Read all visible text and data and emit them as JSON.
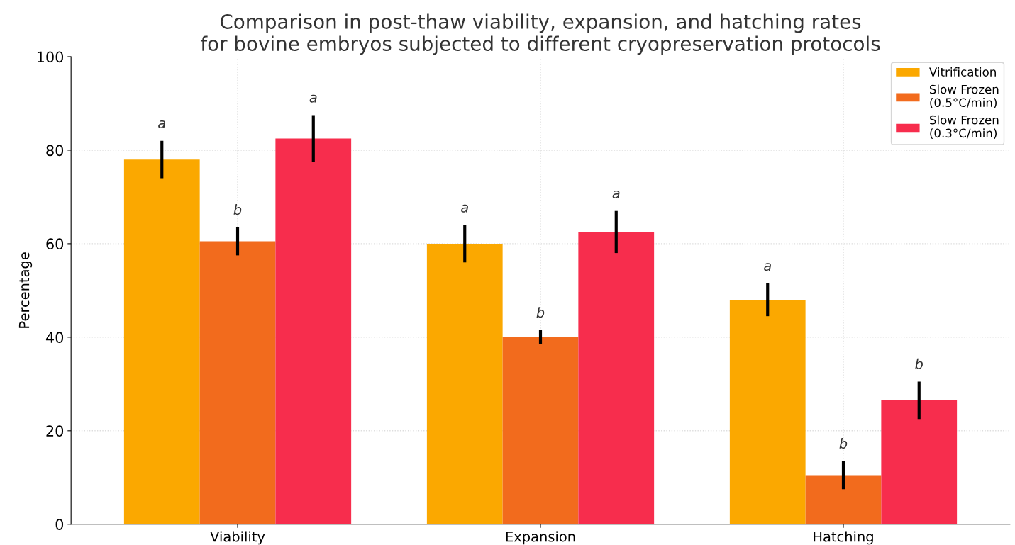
{
  "chart_data": {
    "type": "bar",
    "title": "Comparison in post-thaw viability, expansion, and hatching rates\nfor bovine embryos subjected to different cryopreservation protocols",
    "ylabel": "Percentage",
    "categories": [
      "Viability",
      "Expansion",
      "Hatching"
    ],
    "series": [
      {
        "name": "Vitrification",
        "color": "#fba800",
        "values": [
          78,
          60,
          48
        ],
        "errors": [
          4,
          4,
          3.5
        ],
        "value_labels": [
          "a",
          "a",
          "a"
        ]
      },
      {
        "name": "Slow Frozen\n(0.5°C/min)",
        "color": "#f26b1d",
        "values": [
          60.5,
          40,
          10.5
        ],
        "errors": [
          3,
          1.5,
          3
        ],
        "value_labels": [
          "b",
          "b",
          "b"
        ]
      },
      {
        "name": "Slow Frozen\n(0.3°C/min)",
        "color": "#f72d4d",
        "values": [
          82.5,
          62.5,
          26.5
        ],
        "errors": [
          5,
          4.5,
          4
        ],
        "value_labels": [
          "a",
          "a",
          "b"
        ]
      }
    ],
    "ylim": [
      0,
      100
    ],
    "yticks": [
      0,
      20,
      40,
      60,
      80,
      100
    ],
    "grid": true,
    "legend": "top right"
  }
}
